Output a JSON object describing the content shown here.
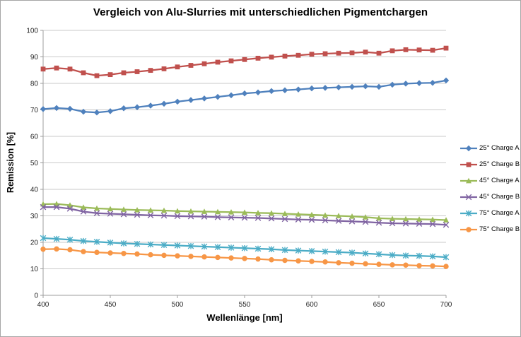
{
  "chart_data": {
    "type": "line",
    "title": "Vergleich von Alu-Slurries mit unterschiedlichen Pigmentchargen",
    "xlabel": "Wellenlänge [nm]",
    "ylabel": "Remission [%]",
    "xlim": [
      400,
      700
    ],
    "ylim": [
      0,
      100
    ],
    "xticks": [
      400,
      450,
      500,
      550,
      600,
      650,
      700
    ],
    "yticks": [
      0,
      10,
      20,
      30,
      40,
      50,
      60,
      70,
      80,
      90,
      100
    ],
    "grid": "horizontal",
    "legend_position": "right",
    "axis_color": "#9c9c9c",
    "gridline_color": "#c9c9c9",
    "x": [
      400,
      410,
      420,
      430,
      440,
      450,
      460,
      470,
      480,
      490,
      500,
      510,
      520,
      530,
      540,
      550,
      560,
      570,
      580,
      590,
      600,
      610,
      620,
      630,
      640,
      650,
      660,
      670,
      680,
      690,
      700
    ],
    "series": [
      {
        "name": "25° Charge A",
        "color": "#4F81BD",
        "marker": "diamond",
        "values": [
          70.3,
          70.7,
          70.4,
          69.3,
          69.0,
          69.5,
          70.6,
          71.0,
          71.6,
          72.3,
          73.1,
          73.7,
          74.3,
          74.9,
          75.5,
          76.2,
          76.6,
          77.1,
          77.4,
          77.7,
          78.1,
          78.3,
          78.5,
          78.7,
          78.9,
          78.7,
          79.5,
          79.9,
          80.1,
          80.2,
          81.1
        ]
      },
      {
        "name": "25° Charge B",
        "color": "#C0504D",
        "marker": "square",
        "values": [
          85.4,
          85.8,
          85.4,
          84.0,
          82.9,
          83.3,
          84.0,
          84.4,
          84.9,
          85.5,
          86.2,
          86.8,
          87.4,
          88.0,
          88.5,
          89.0,
          89.5,
          89.9,
          90.3,
          90.6,
          91.0,
          91.2,
          91.4,
          91.5,
          91.8,
          91.4,
          92.3,
          92.7,
          92.6,
          92.5,
          93.3
        ]
      },
      {
        "name": "45° Charge A",
        "color": "#9BBB59",
        "marker": "triangle",
        "values": [
          34.4,
          34.5,
          34.0,
          33.2,
          32.8,
          32.6,
          32.4,
          32.2,
          32.1,
          32.0,
          31.8,
          31.7,
          31.6,
          31.5,
          31.4,
          31.3,
          31.1,
          31.0,
          30.8,
          30.6,
          30.4,
          30.2,
          30.0,
          29.8,
          29.5,
          29.1,
          28.9,
          28.8,
          28.7,
          28.6,
          28.4
        ]
      },
      {
        "name": "45° Charge B",
        "color": "#8064A2",
        "marker": "x",
        "values": [
          33.3,
          33.3,
          32.7,
          31.6,
          31.0,
          30.8,
          30.6,
          30.4,
          30.2,
          30.1,
          29.9,
          29.8,
          29.7,
          29.5,
          29.4,
          29.3,
          29.2,
          29.0,
          28.8,
          28.6,
          28.5,
          28.3,
          28.1,
          27.9,
          27.7,
          27.4,
          27.2,
          27.1,
          27.0,
          26.9,
          26.6
        ]
      },
      {
        "name": "75° Charge A",
        "color": "#4BACC6",
        "marker": "asterisk",
        "values": [
          21.6,
          21.3,
          21.0,
          20.5,
          20.2,
          19.9,
          19.6,
          19.4,
          19.2,
          19.0,
          18.8,
          18.6,
          18.4,
          18.2,
          18.0,
          17.8,
          17.6,
          17.4,
          17.1,
          16.9,
          16.7,
          16.5,
          16.3,
          16.1,
          15.8,
          15.5,
          15.2,
          15.0,
          14.9,
          14.7,
          14.4
        ]
      },
      {
        "name": "75° Charge B",
        "color": "#F79646",
        "marker": "circle",
        "values": [
          17.4,
          17.5,
          17.2,
          16.5,
          16.2,
          16.0,
          15.8,
          15.6,
          15.3,
          15.1,
          14.9,
          14.7,
          14.5,
          14.3,
          14.1,
          13.9,
          13.7,
          13.4,
          13.2,
          13.0,
          12.8,
          12.6,
          12.3,
          12.1,
          11.9,
          11.7,
          11.5,
          11.4,
          11.2,
          11.1,
          10.9
        ]
      }
    ]
  }
}
